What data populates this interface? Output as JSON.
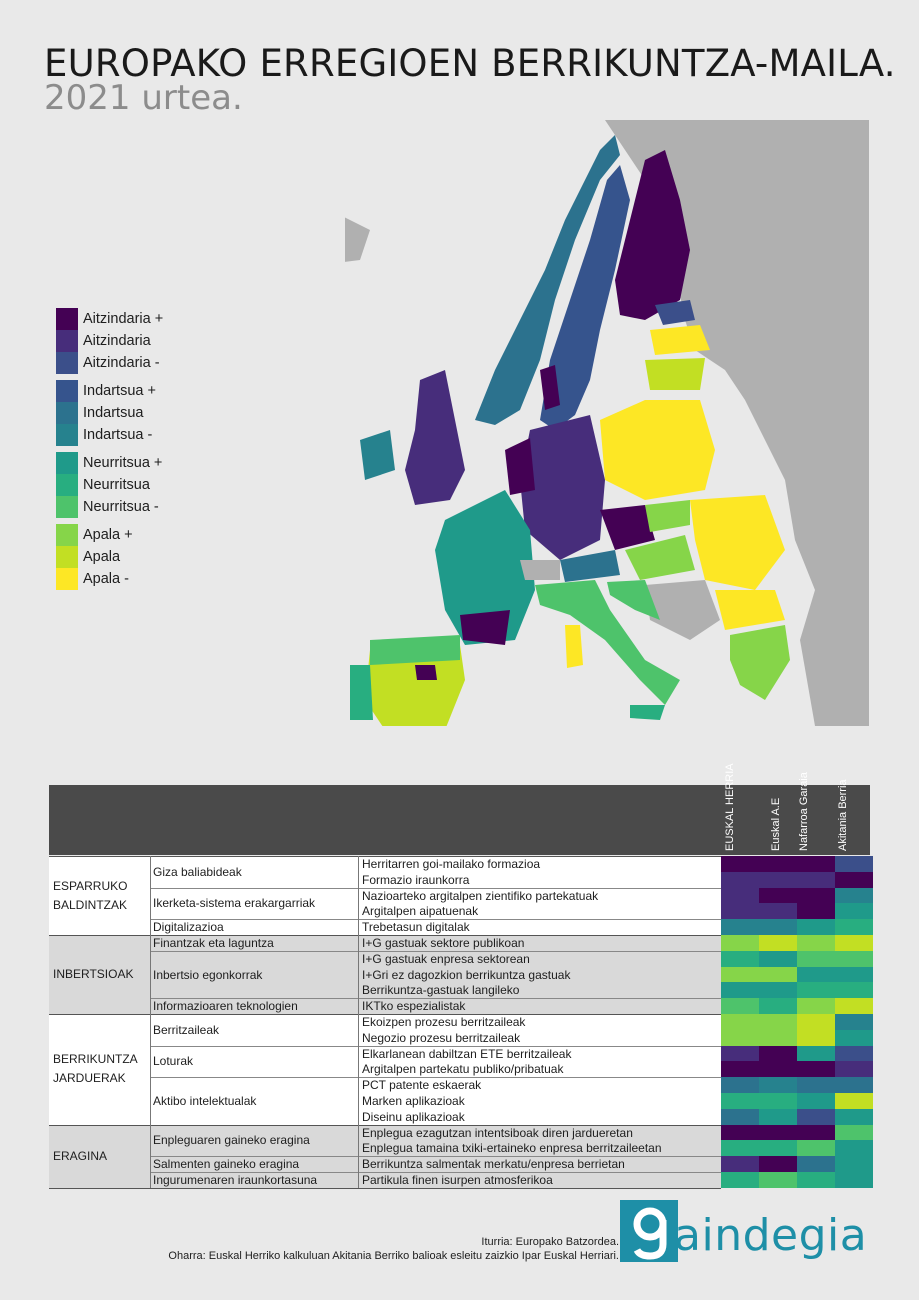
{
  "title": "EUROPAKO ERREGIOEN BERRIKUNTZA-MAILA.",
  "subtitle": "2021 urtea.",
  "colors": {
    "aitzindaria_plus": "#440154",
    "aitzindaria": "#472d7b",
    "aitzindaria_minus": "#3b4f8a",
    "indartsua_plus": "#36548d",
    "indartsua": "#2c728e",
    "indartsua_minus": "#26828e",
    "neurritsua_plus": "#1f9a8a",
    "neurritsua": "#28ae80",
    "neurritsua_minus": "#4ec36b",
    "apala_plus": "#86d549",
    "apala": "#c2df23",
    "apala_minus": "#fde725",
    "non_eu": "#b0b0b0",
    "sea": "#e9e9e9"
  },
  "legend": [
    {
      "label": "Aitzindaria +",
      "color": "#440154"
    },
    {
      "label": "Aitzindaria",
      "color": "#472d7b"
    },
    {
      "label": "Aitzindaria -",
      "color": "#3b4f8a"
    },
    {
      "label": "Indartsua +",
      "color": "#36548d"
    },
    {
      "label": "Indartsua",
      "color": "#2c728e"
    },
    {
      "label": "Indartsua -",
      "color": "#26828e"
    },
    {
      "label": "Neurritsua +",
      "color": "#1f9a8a"
    },
    {
      "label": "Neurritsua",
      "color": "#28ae80"
    },
    {
      "label": "Neurritsua -",
      "color": "#4ec36b"
    },
    {
      "label": "Apala +",
      "color": "#86d549"
    },
    {
      "label": "Apala",
      "color": "#c2df23"
    },
    {
      "label": "Apala -",
      "color": "#fde725"
    }
  ],
  "table": {
    "columns": [
      "EUSKAL HERRIA",
      "Euskal A.E",
      "Nafarroa Garaia",
      "Akitania Berria"
    ],
    "groups": [
      {
        "name": "ESPARRUKO BALDINTZAK",
        "subgroups": [
          {
            "name": "Giza baliabideak",
            "indicators": [
              {
                "name": "Herritarren goi-mailako formazioa",
                "levels": [
                  "Aitzindaria +",
                  "Aitzindaria +",
                  "Aitzindaria +",
                  "Aitzindaria -"
                ]
              },
              {
                "name": "Formazio iraunkorra",
                "levels": [
                  "Aitzindaria",
                  "Aitzindaria",
                  "Aitzindaria",
                  "Aitzindaria +"
                ]
              }
            ]
          },
          {
            "name": "Ikerketa-sistema erakargarriak",
            "indicators": [
              {
                "name": "Nazioarteko argitalpen zientifiko partekatuak",
                "levels": [
                  "Aitzindaria",
                  "Aitzindaria +",
                  "Aitzindaria +",
                  "Indartsua -"
                ]
              },
              {
                "name": "Argitalpen aipatuenak",
                "levels": [
                  "Aitzindaria",
                  "Aitzindaria",
                  "Aitzindaria +",
                  "Neurritsua +"
                ]
              }
            ]
          },
          {
            "name": "Digitalizazioa",
            "indicators": [
              {
                "name": "Trebetasun digitalak",
                "levels": [
                  "Indartsua -",
                  "Indartsua -",
                  "Neurritsua +",
                  "Neurritsua"
                ]
              }
            ]
          }
        ]
      },
      {
        "name": "INBERTSIOAK",
        "subgroups": [
          {
            "name": "Finantzak eta laguntza",
            "indicators": [
              {
                "name": "I+G gastuak sektore publikoan",
                "levels": [
                  "Apala +",
                  "Apala",
                  "Apala +",
                  "Apala"
                ]
              }
            ]
          },
          {
            "name": "Inbertsio egonkorrak",
            "indicators": [
              {
                "name": "I+G gastuak enpresa sektorean",
                "levels": [
                  "Neurritsua",
                  "Neurritsua +",
                  "Neurritsua -",
                  "Neurritsua -"
                ]
              },
              {
                "name": "I+Gri ez dagozkion berrikuntza gastuak",
                "levels": [
                  "Apala +",
                  "Apala +",
                  "Neurritsua +",
                  "Neurritsua +"
                ]
              },
              {
                "name": "Berrikuntza-gastuak langileko",
                "levels": [
                  "Neurritsua +",
                  "Neurritsua +",
                  "Neurritsua",
                  "Neurritsua"
                ]
              }
            ]
          },
          {
            "name": "Informazioaren teknologien",
            "indicators": [
              {
                "name": "IKTko espezialistak",
                "levels": [
                  "Neurritsua -",
                  "Neurritsua",
                  "Apala +",
                  "Apala"
                ]
              }
            ]
          }
        ]
      },
      {
        "name": "BERRIKUNTZA JARDUERAK",
        "subgroups": [
          {
            "name": "Berritzaileak",
            "indicators": [
              {
                "name": "Ekoizpen prozesu berritzaileak",
                "levels": [
                  "Apala +",
                  "Apala +",
                  "Apala",
                  "Indartsua -"
                ]
              },
              {
                "name": "Negozio prozesu berritzaileak",
                "levels": [
                  "Apala +",
                  "Apala +",
                  "Apala",
                  "Neurritsua +"
                ]
              }
            ]
          },
          {
            "name": "Loturak",
            "indicators": [
              {
                "name": "Elkarlanean dabiltzan ETE berritzaileak",
                "levels": [
                  "Aitzindaria",
                  "Aitzindaria +",
                  "Neurritsua +",
                  "Aitzindaria -"
                ]
              },
              {
                "name": "Argitalpen partekatu publiko/pribatuak",
                "levels": [
                  "Aitzindaria +",
                  "Aitzindaria +",
                  "Aitzindaria +",
                  "Aitzindaria"
                ]
              }
            ]
          },
          {
            "name": "Aktibo intelektualak",
            "indicators": [
              {
                "name": "PCT patente eskaerak",
                "levels": [
                  "Indartsua",
                  "Indartsua -",
                  "Indartsua",
                  "Indartsua"
                ]
              },
              {
                "name": "Marken aplikazioak",
                "levels": [
                  "Neurritsua",
                  "Neurritsua",
                  "Neurritsua +",
                  "Apala"
                ]
              },
              {
                "name": "Diseinu aplikazioak",
                "levels": [
                  "Indartsua",
                  "Neurritsua +",
                  "Aitzindaria -",
                  "Neurritsua +"
                ]
              }
            ]
          }
        ]
      },
      {
        "name": "ERAGINA",
        "subgroups": [
          {
            "name": "Enpleguaren gaineko eragina",
            "indicators": [
              {
                "name": "Enplegua ezagutzan intentsiboak diren jardueretan",
                "levels": [
                  "Aitzindaria +",
                  "Aitzindaria +",
                  "Aitzindaria +",
                  "Neurritsua -"
                ]
              },
              {
                "name": "Enplegua tamaina txiki-ertaineko enpresa berritzaileetan",
                "levels": [
                  "Neurritsua",
                  "Neurritsua",
                  "Neurritsua -",
                  "Neurritsua +"
                ]
              }
            ]
          },
          {
            "name": "Salmenten gaineko eragina",
            "indicators": [
              {
                "name": "Berrikuntza salmentak merkatu/enpresa berrietan",
                "levels": [
                  "Aitzindaria",
                  "Aitzindaria +",
                  "Indartsua",
                  "Neurritsua +"
                ]
              }
            ]
          },
          {
            "name": "Ingurumenaren iraunkortasuna",
            "indicators": [
              {
                "name": "Partikula finen isurpen atmosferikoa",
                "levels": [
                  "Neurritsua",
                  "Neurritsua -",
                  "Neurritsua",
                  "Neurritsua +"
                ]
              }
            ]
          }
        ]
      }
    ]
  },
  "footer": {
    "source": "Iturria: Europako Batzordea.",
    "note": "Oharra: Euskal Herriko kalkuluan Akitania Berriko balioak esleitu zaizkio Ipar Euskal Herriari."
  },
  "logo": {
    "text": "aindegia",
    "letter": "g"
  }
}
